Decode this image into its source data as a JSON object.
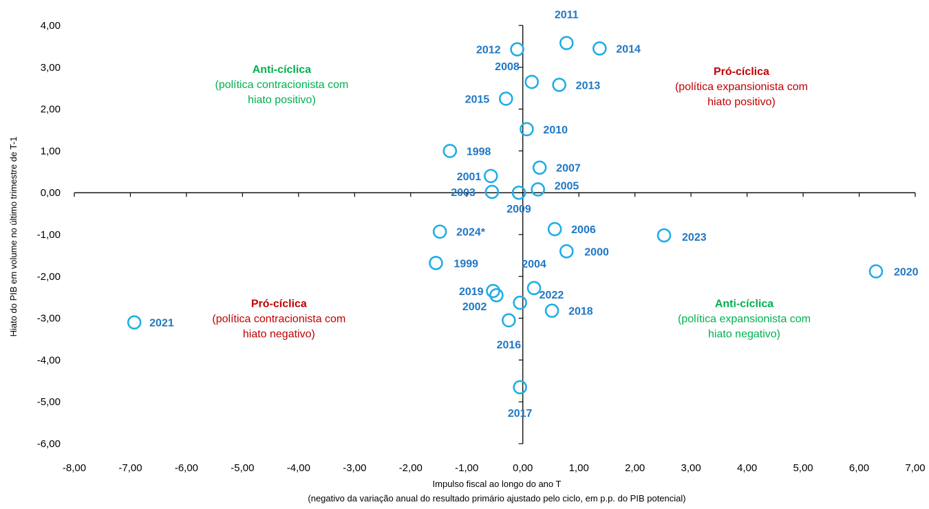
{
  "chart_data": {
    "type": "scatter",
    "title": "",
    "xlabel": "Impulso fiscal ao longo do ano T",
    "xlabel2": "(negativo da variação anual do resultado primário ajustado pelo ciclo, em p.p. do PIB potencial)",
    "ylabel": "Hiato do PIB em volume no último trimestre de T-1",
    "xlim": [
      -8,
      7
    ],
    "ylim": [
      -6,
      4
    ],
    "x_ticks": [
      "-8,00",
      "-7,00",
      "-6,00",
      "-5,00",
      "-4,00",
      "-3,00",
      "-2,00",
      "-1,00",
      "0,00",
      "1,00",
      "2,00",
      "3,00",
      "4,00",
      "5,00",
      "6,00",
      "7,00"
    ],
    "y_ticks": [
      "4,00",
      "3,00",
      "2,00",
      "1,00",
      "0,00",
      "-1,00",
      "-2,00",
      "-3,00",
      "-4,00",
      "-5,00",
      "-6,00"
    ],
    "grid": false,
    "colors": {
      "marker": "#1EAEE6",
      "label": "#1F77C4",
      "pro": "#C00000",
      "anti": "#00B050"
    },
    "points": [
      {
        "label": "1998",
        "x": -1.3,
        "y": 1.0
      },
      {
        "label": "1999",
        "x": -1.55,
        "y": -1.68
      },
      {
        "label": "2000",
        "x": 0.78,
        "y": -1.4
      },
      {
        "label": "2001",
        "x": -0.57,
        "y": 0.4
      },
      {
        "label": "2002",
        "x": -0.47,
        "y": -2.45
      },
      {
        "label": "2003",
        "x": -0.55,
        "y": 0.02
      },
      {
        "label": "2004",
        "x": 0.2,
        "y": -2.28
      },
      {
        "label": "2005",
        "x": 0.27,
        "y": 0.08
      },
      {
        "label": "2006",
        "x": 0.57,
        "y": -0.87
      },
      {
        "label": "2007",
        "x": 0.3,
        "y": 0.6
      },
      {
        "label": "2008",
        "x": 0.16,
        "y": 2.65
      },
      {
        "label": "2009",
        "x": -0.07,
        "y": 0.0
      },
      {
        "label": "2010",
        "x": 0.07,
        "y": 1.52
      },
      {
        "label": "2011",
        "x": 0.78,
        "y": 3.58
      },
      {
        "label": "2012",
        "x": -0.1,
        "y": 3.43
      },
      {
        "label": "2013",
        "x": 0.65,
        "y": 2.58
      },
      {
        "label": "2014",
        "x": 1.37,
        "y": 3.45
      },
      {
        "label": "2015",
        "x": -0.3,
        "y": 2.25
      },
      {
        "label": "2016",
        "x": -0.25,
        "y": -3.05
      },
      {
        "label": "2017",
        "x": -0.05,
        "y": -4.65
      },
      {
        "label": "2018",
        "x": 0.52,
        "y": -2.82
      },
      {
        "label": "2019",
        "x": -0.53,
        "y": -2.35
      },
      {
        "label": "2020",
        "x": 6.3,
        "y": -1.88
      },
      {
        "label": "2021",
        "x": -6.93,
        "y": -3.1
      },
      {
        "label": "2022",
        "x": -0.05,
        "y": -2.63
      },
      {
        "label": "2023",
        "x": 2.52,
        "y": -1.02
      },
      {
        "label": "2024*",
        "x": -1.48,
        "y": -0.93
      }
    ],
    "annotations": [
      {
        "title": "Anti-cíclica",
        "text1": "(política contracionista com",
        "text2": "hiato positivo)",
        "type": "anti",
        "x": -4.3,
        "y": 2.5
      },
      {
        "title": "Pró-cíclica",
        "text1": "(política expansionista com",
        "text2": "hiato positivo)",
        "type": "pro",
        "x": 3.9,
        "y": 2.45
      },
      {
        "title": "Pró-cíclica",
        "text1": "(política contracionista com",
        "text2": "hiato negativo)",
        "type": "pro",
        "x": -4.35,
        "y": -3.1
      },
      {
        "title": "Anti-cíclica",
        "text1": "(política expansionista com",
        "text2": "hiato negativo)",
        "type": "anti",
        "x": 3.95,
        "y": -3.1
      }
    ]
  }
}
